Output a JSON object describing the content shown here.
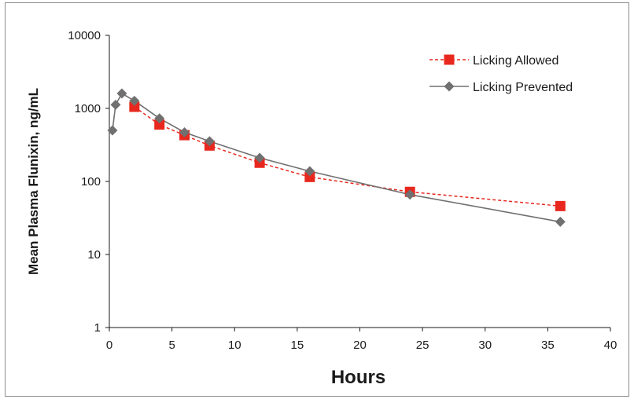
{
  "chart_data": {
    "type": "line",
    "xlabel": "Hours",
    "ylabel": "Mean Plasma Flunixin, ng/mL",
    "xlim": [
      0,
      40
    ],
    "ylim": [
      1,
      10000
    ],
    "yscale": "log",
    "x_ticks": [
      "0",
      "5",
      "10",
      "15",
      "20",
      "25",
      "30",
      "35",
      "40"
    ],
    "y_ticks": [
      "1",
      "10",
      "100",
      "1000",
      "10000"
    ],
    "grid": false,
    "legend_position": "top-right",
    "series": [
      {
        "name": "Licking Allowed",
        "color": "#e8281e",
        "line_style": "dashed",
        "marker": "square",
        "x": [
          2,
          4,
          6,
          8,
          12,
          16,
          24,
          36
        ],
        "y": [
          1050,
          600,
          430,
          310,
          180,
          115,
          72,
          46
        ]
      },
      {
        "name": "Licking Prevented",
        "color": "#707070",
        "line_style": "solid",
        "marker": "diamond",
        "x": [
          0.25,
          0.5,
          1,
          2,
          4,
          6,
          8,
          12,
          16,
          24,
          36
        ],
        "y": [
          500,
          1120,
          1600,
          1270,
          730,
          470,
          355,
          210,
          138,
          66,
          28
        ]
      }
    ]
  }
}
